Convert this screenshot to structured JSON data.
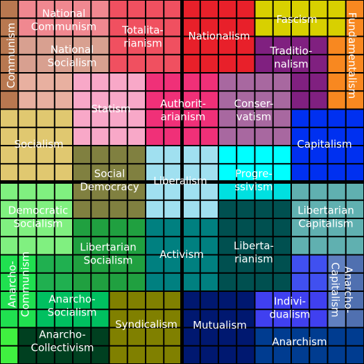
{
  "labels": [
    {
      "lines": [
        "Communism"
      ]
    },
    {
      "lines": [
        "National",
        "Communism"
      ]
    },
    {
      "lines": [
        "National",
        "Socialism"
      ]
    },
    {
      "lines": [
        "Totalita-",
        "rianism"
      ]
    },
    {
      "lines": [
        "Nationalism"
      ]
    },
    {
      "lines": [
        "Fascism"
      ]
    },
    {
      "lines": [
        "Traditio-",
        "nalism"
      ]
    },
    {
      "lines": [
        "Fundamentalism"
      ]
    },
    {
      "lines": [
        "Statism"
      ]
    },
    {
      "lines": [
        "Authorit-",
        "arianism"
      ]
    },
    {
      "lines": [
        "Conser-",
        "vatism"
      ]
    },
    {
      "lines": [
        "Socialism"
      ]
    },
    {
      "lines": [
        "Capitalism"
      ]
    },
    {
      "lines": [
        "Social",
        "Democracy"
      ]
    },
    {
      "lines": [
        "Liberalism"
      ]
    },
    {
      "lines": [
        "Progre-",
        "ssivism"
      ]
    },
    {
      "lines": [
        "Democratic",
        "Socialism"
      ]
    },
    {
      "lines": [
        "Libertarian",
        "Capitalism"
      ]
    },
    {
      "lines": [
        "Libertarian",
        "Socialism"
      ]
    },
    {
      "lines": [
        "Activism"
      ]
    },
    {
      "lines": [
        "Liberta-",
        "rianism"
      ]
    },
    {
      "lines": [
        "Anarcho-",
        "Communism"
      ]
    },
    {
      "lines": [
        "Anarcho-",
        "Socialism"
      ]
    },
    {
      "lines": [
        "Syndicalism"
      ]
    },
    {
      "lines": [
        "Mutualism"
      ]
    },
    {
      "lines": [
        "Indivi-",
        "dualism"
      ]
    },
    {
      "lines": [
        "Anarcho-",
        "Capitalism"
      ]
    },
    {
      "lines": [
        "Anarchism"
      ]
    },
    {
      "lines": [
        "Anarcho-",
        "Collectivism"
      ]
    }
  ]
}
